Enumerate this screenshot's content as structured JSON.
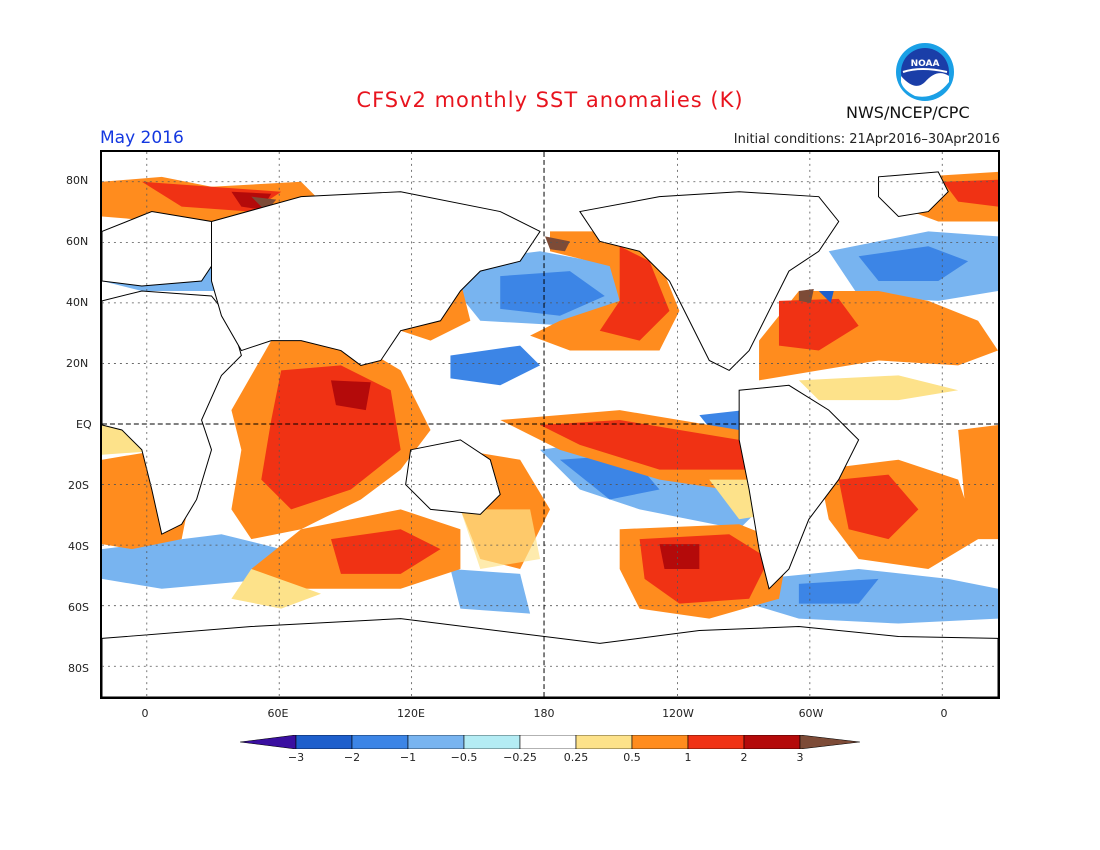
{
  "header": {
    "title": "CFSv2 monthly SST anomalies (K)",
    "month": "May 2016",
    "initial_conditions": "Initial conditions: 21Apr2016–30Apr2016",
    "org": "NWS/NCEP/CPC",
    "logo_text": "NOAA"
  },
  "axes": {
    "y_labels": [
      "80N",
      "60N",
      "40N",
      "20N",
      "EQ",
      "20S",
      "40S",
      "60S",
      "80S"
    ],
    "x_labels": [
      "0",
      "60E",
      "120E",
      "180",
      "120W",
      "60W",
      "0"
    ]
  },
  "colorbar": {
    "labels": [
      "−3",
      "−2",
      "−1",
      "−0.5",
      "−0.25",
      "0.25",
      "0.5",
      "1",
      "2",
      "3"
    ],
    "colors": [
      "#3a0fa0",
      "#1e5fcc",
      "#3c85e6",
      "#78b4f0",
      "#b4ecf4",
      "#ffffff",
      "#fde28a",
      "#ff8c1e",
      "#f03214",
      "#b40a0a",
      "#7d4b37"
    ]
  }
}
